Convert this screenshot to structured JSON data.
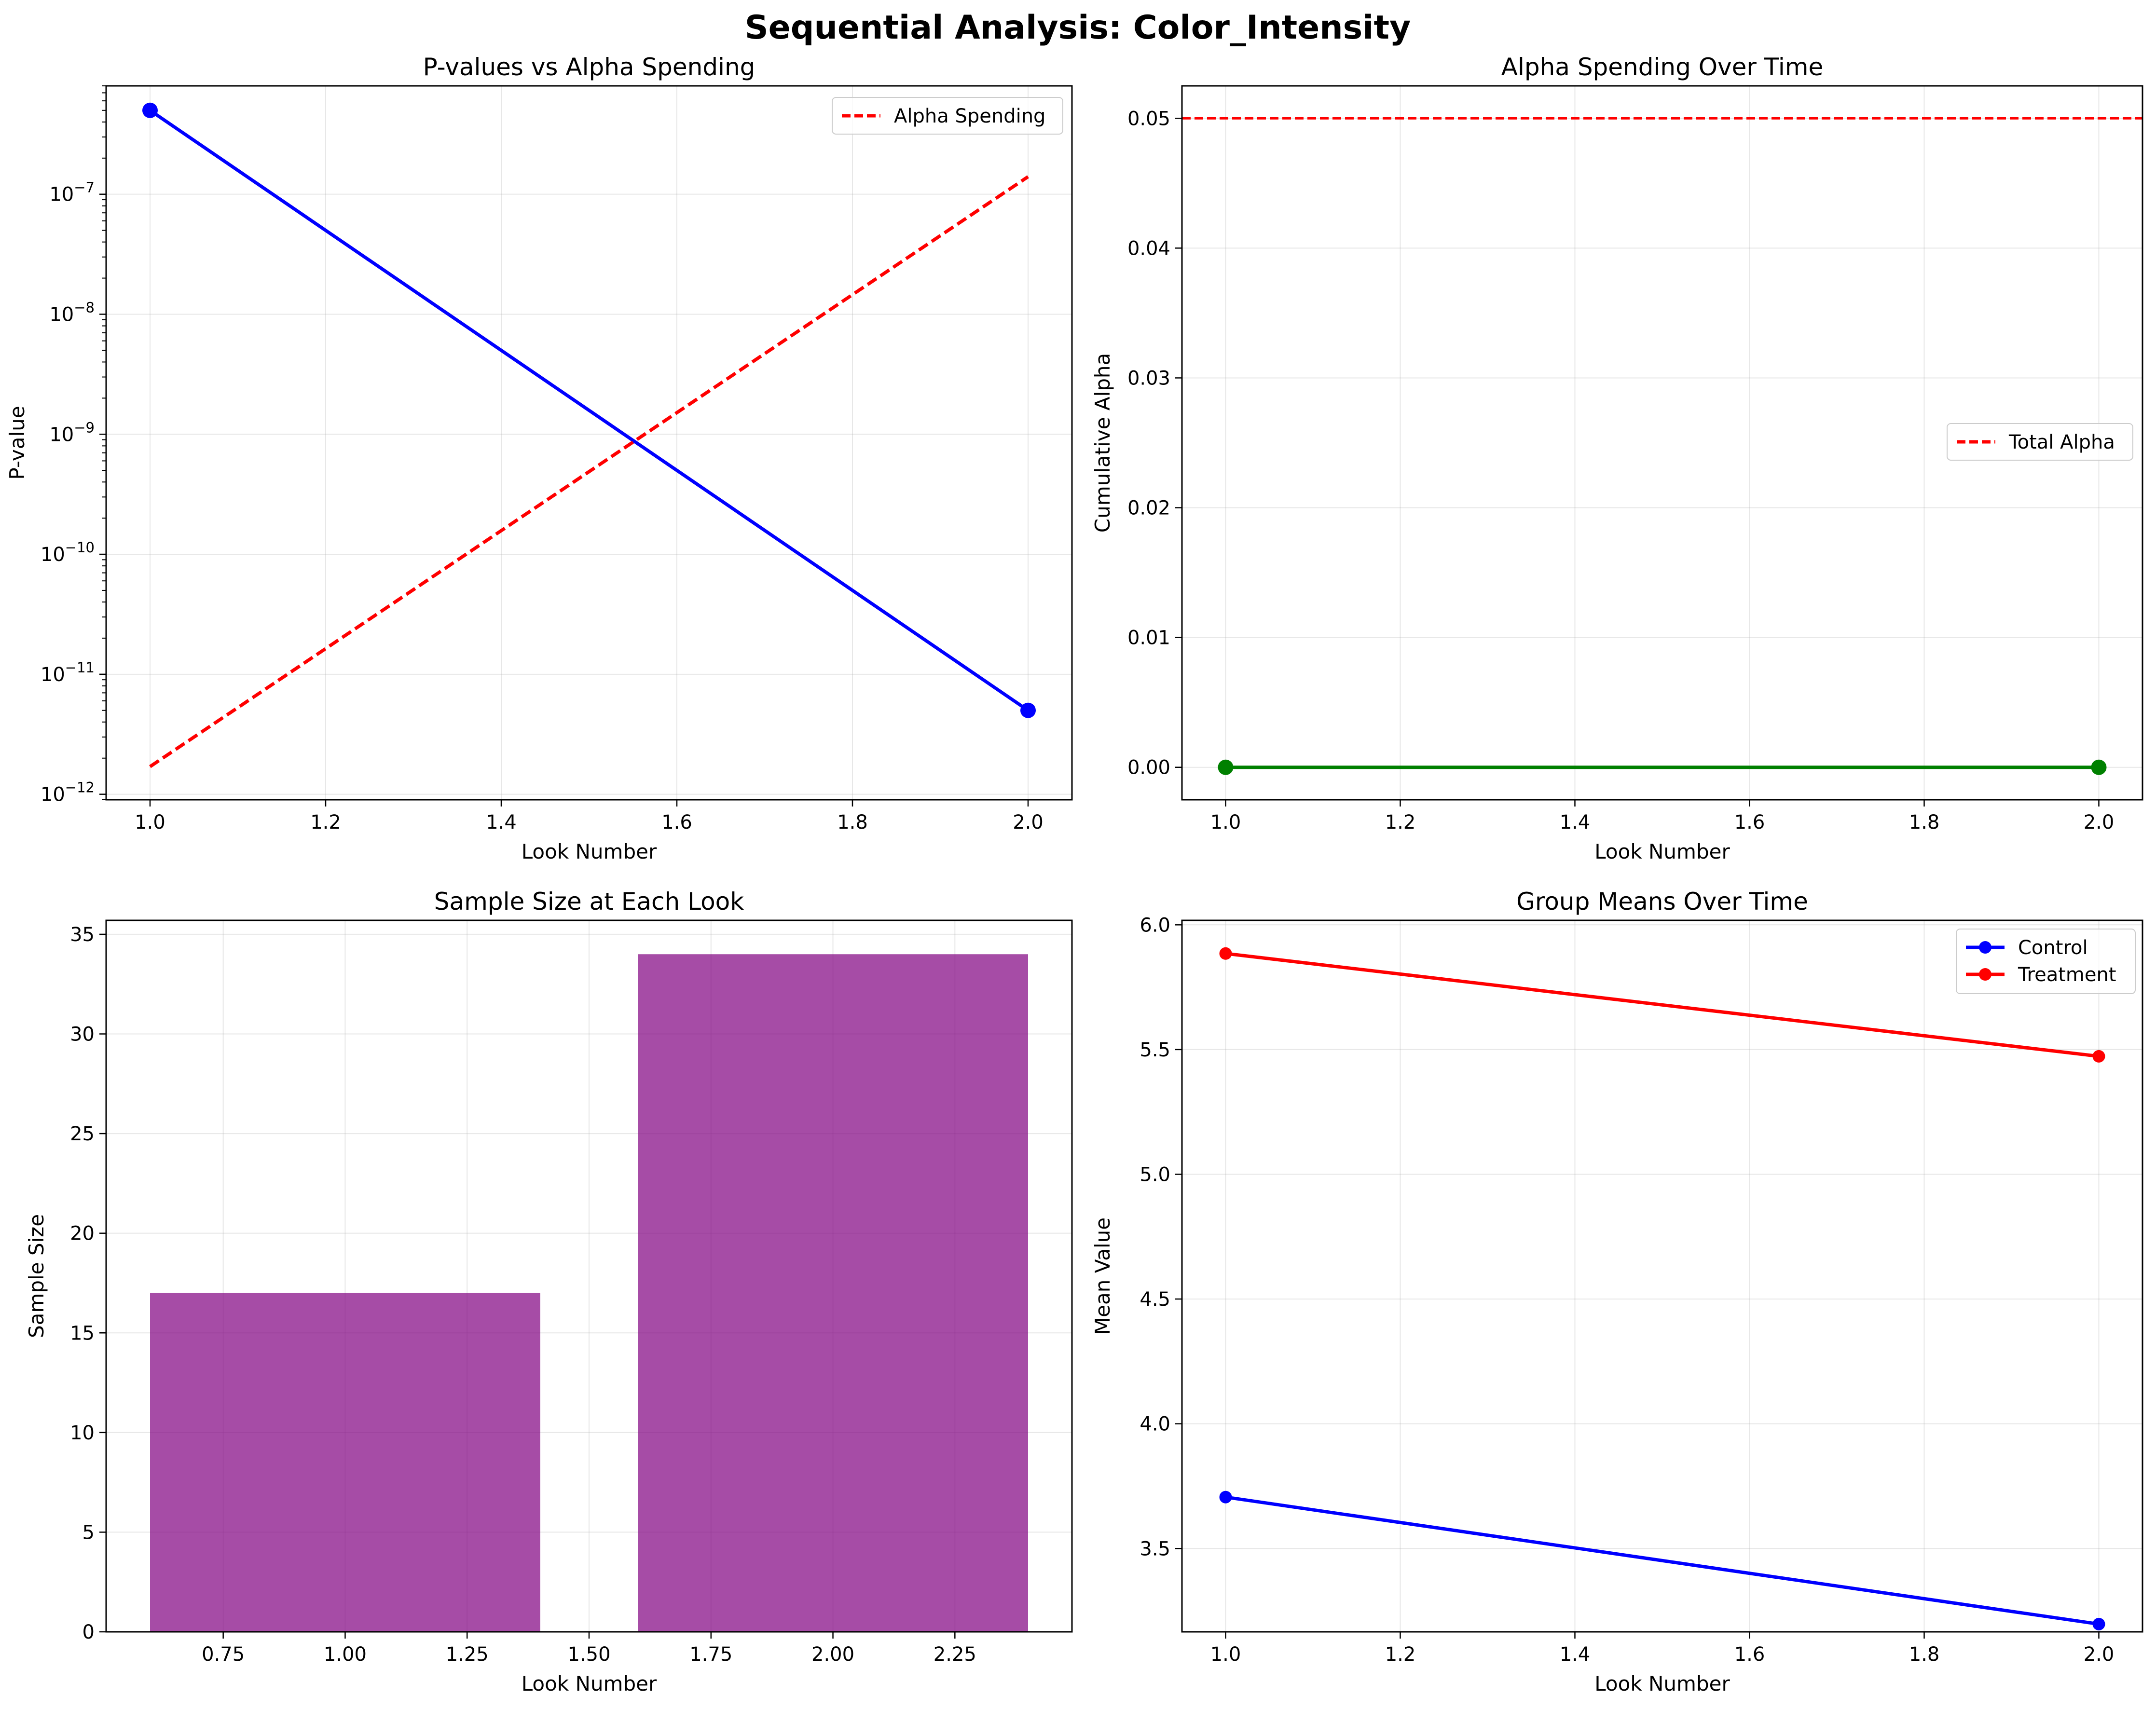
{
  "suptitle": "Sequential Analysis: Color_Intensity",
  "colors": {
    "pvalue_line": "#0000ff",
    "alpha_spending_line": "#ff0000",
    "cumulative_alpha_line": "#008000",
    "bars": "#800080",
    "control": "#0000ff",
    "treatment": "#ff0000",
    "grid": "#b0b0b0"
  },
  "chart_data": [
    {
      "type": "line",
      "title": "P-values vs Alpha Spending",
      "xlabel": "Look Number",
      "ylabel": "P-value",
      "yscale": "log",
      "grid": true,
      "legend_position": "upper right",
      "xlim": [
        0.95,
        2.05
      ],
      "ylim": [
        9e-13,
        8e-07
      ],
      "x_ticks": [
        1.0,
        1.2,
        1.4,
        1.6,
        1.8,
        2.0
      ],
      "x_tick_labels": [
        "1.0",
        "1.2",
        "1.4",
        "1.6",
        "1.8",
        "2.0"
      ],
      "y_ticks": [
        1e-12,
        1e-11,
        1e-10,
        1e-09,
        1e-08,
        1e-07
      ],
      "y_tick_labels": [
        {
          "base": "10",
          "exp": "−12"
        },
        {
          "base": "10",
          "exp": "−11"
        },
        {
          "base": "10",
          "exp": "−10"
        },
        {
          "base": "10",
          "exp": "−9"
        },
        {
          "base": "10",
          "exp": "−8"
        },
        {
          "base": "10",
          "exp": "−7"
        }
      ],
      "series": [
        {
          "x": [
            1,
            2
          ],
          "values": [
            5e-07,
            5e-12
          ],
          "style": "solid",
          "markers": true
        },
        {
          "name": "Alpha Spending",
          "x": [
            1,
            2
          ],
          "values": [
            1.7e-12,
            1.4e-07
          ],
          "style": "dashed",
          "markers": false
        }
      ]
    },
    {
      "type": "line",
      "title": "Alpha Spending Over Time",
      "xlabel": "Look Number",
      "ylabel": "Cumulative Alpha",
      "grid": true,
      "legend_position": "center right",
      "xlim": [
        0.95,
        2.05
      ],
      "ylim": [
        -0.0025,
        0.0525
      ],
      "x_ticks": [
        1.0,
        1.2,
        1.4,
        1.6,
        1.8,
        2.0
      ],
      "x_tick_labels": [
        "1.0",
        "1.2",
        "1.4",
        "1.6",
        "1.8",
        "2.0"
      ],
      "y_ticks": [
        0.0,
        0.01,
        0.02,
        0.03,
        0.04,
        0.05
      ],
      "y_tick_labels": [
        "0.00",
        "0.01",
        "0.02",
        "0.03",
        "0.04",
        "0.05"
      ],
      "series": [
        {
          "x": [
            1,
            2
          ],
          "values": [
            0.0,
            0.0
          ],
          "style": "solid",
          "markers": true
        }
      ],
      "reference_line": {
        "name": "Total Alpha",
        "value": 0.05,
        "style": "dashed"
      }
    },
    {
      "type": "bar",
      "title": "Sample Size at Each Look",
      "xlabel": "Look Number",
      "ylabel": "Sample Size",
      "grid": true,
      "xlim": [
        0.51,
        2.49
      ],
      "ylim": [
        0,
        35.7
      ],
      "x_ticks": [
        0.75,
        1.0,
        1.25,
        1.5,
        1.75,
        2.0,
        2.25
      ],
      "x_tick_labels": [
        "0.75",
        "1.00",
        "1.25",
        "1.50",
        "1.75",
        "2.00",
        "2.25"
      ],
      "y_ticks": [
        0,
        5,
        10,
        15,
        20,
        25,
        30,
        35
      ],
      "y_tick_labels": [
        "0",
        "5",
        "10",
        "15",
        "20",
        "25",
        "30",
        "35"
      ],
      "bar_width": 0.8,
      "x": [
        1,
        2
      ],
      "values": [
        17,
        34
      ]
    },
    {
      "type": "line",
      "title": "Group Means Over Time",
      "xlabel": "Look Number",
      "ylabel": "Mean Value",
      "grid": true,
      "legend_position": "upper right",
      "xlim": [
        0.95,
        2.05
      ],
      "ylim": [
        3.166,
        6.018
      ],
      "x_ticks": [
        1.0,
        1.2,
        1.4,
        1.6,
        1.8,
        2.0
      ],
      "x_tick_labels": [
        "1.0",
        "1.2",
        "1.4",
        "1.6",
        "1.8",
        "2.0"
      ],
      "y_ticks": [
        3.5,
        4.0,
        4.5,
        5.0,
        5.5,
        6.0
      ],
      "y_tick_labels": [
        "3.5",
        "4.0",
        "4.5",
        "5.0",
        "5.5",
        "6.0"
      ],
      "series": [
        {
          "name": "Control",
          "x": [
            1,
            2
          ],
          "values": [
            3.706,
            3.197
          ],
          "style": "solid",
          "markers": true
        },
        {
          "name": "Treatment",
          "x": [
            1,
            2
          ],
          "values": [
            5.885,
            5.473
          ],
          "style": "solid",
          "markers": true
        }
      ]
    }
  ]
}
